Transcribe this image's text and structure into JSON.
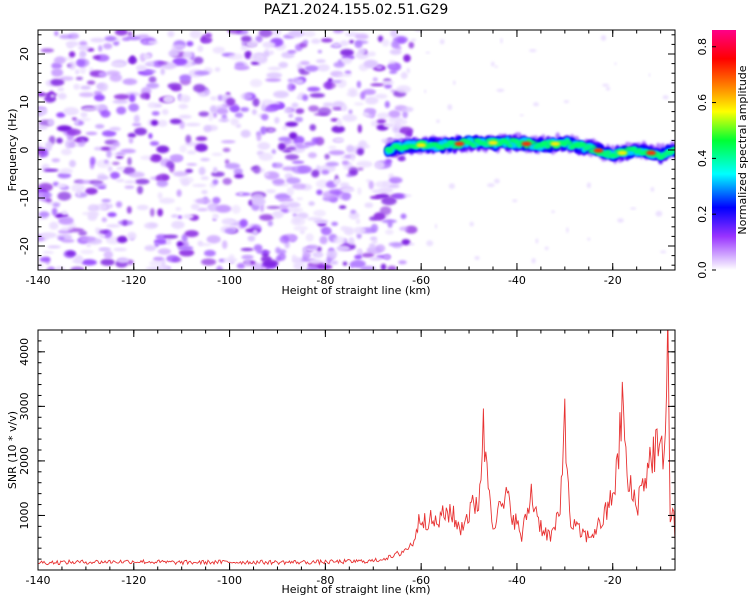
{
  "figure": {
    "title": "PAZ1.2024.155.02.51.G29"
  },
  "chart_data": [
    {
      "type": "heatmap",
      "xlabel": "Height of straight line (km)",
      "ylabel": "Frequency (Hz)",
      "xlim": [
        -140,
        -7
      ],
      "ylim": [
        -25,
        25
      ],
      "x_ticks": [
        "-140",
        "-120",
        "-100",
        "-80",
        "-60",
        "-40",
        "-20"
      ],
      "y_ticks": [
        "-20",
        "-10",
        "0",
        "10",
        "20"
      ],
      "colorbar": {
        "label": "Normalized spectral amplitude",
        "range": [
          0,
          0.86
        ],
        "ticks": [
          "0.0",
          "0.2",
          "0.4",
          "0.6",
          "0.8"
        ],
        "colors": [
          "#ffffff",
          "#d9b8ff",
          "#9933ff",
          "#0000ff",
          "#00ffff",
          "#00ff33",
          "#ffff00",
          "#ff8800",
          "#ff0000",
          "#ff0088"
        ]
      },
      "noise_region_x": [
        -140,
        -63
      ],
      "signal_ridge": {
        "x": [
          -67,
          -63,
          -60,
          -55,
          -50,
          -45,
          -40,
          -35,
          -30,
          -25,
          -20,
          -15,
          -10,
          -7
        ],
        "frequency_hz": [
          0,
          1,
          1,
          1,
          1.5,
          1.5,
          1.5,
          1,
          1.5,
          0.5,
          -1,
          0,
          -1,
          0
        ],
        "peak_x": [
          -60,
          -52,
          -45,
          -38,
          -32,
          -23,
          -18,
          -12
        ]
      }
    },
    {
      "type": "line",
      "xlabel": "Height of straight line (km)",
      "ylabel": "SNR (10 * v/v)",
      "xlim": [
        -140,
        -7
      ],
      "ylim": [
        0,
        4400
      ],
      "x_ticks": [
        "-140",
        "-120",
        "-100",
        "-80",
        "-60",
        "-40",
        "-20"
      ],
      "y_ticks": [
        "1000",
        "2000",
        "3000",
        "4000"
      ],
      "series": [
        {
          "color": "#e83232",
          "x": [
            -140,
            -130,
            -120,
            -110,
            -100,
            -90,
            -80,
            -70,
            -66,
            -62,
            -60,
            -57,
            -54,
            -52,
            -50,
            -48,
            -47,
            -45,
            -42,
            -39,
            -37,
            -35,
            -33,
            -31,
            -30,
            -29,
            -27,
            -25,
            -23,
            -21,
            -19,
            -18,
            -17,
            -15,
            -13,
            -11,
            -10,
            -9,
            -8.5,
            -8,
            -7.5,
            -7
          ],
          "y": [
            120,
            130,
            140,
            120,
            130,
            125,
            130,
            150,
            230,
            450,
            1000,
            850,
            1100,
            750,
            1050,
            1300,
            2500,
            900,
            1300,
            600,
            1400,
            800,
            600,
            1000,
            3050,
            900,
            700,
            600,
            800,
            1100,
            1800,
            3200,
            1600,
            1200,
            1800,
            2300,
            2000,
            2600,
            4400,
            800,
            1200,
            600
          ]
        }
      ]
    }
  ]
}
